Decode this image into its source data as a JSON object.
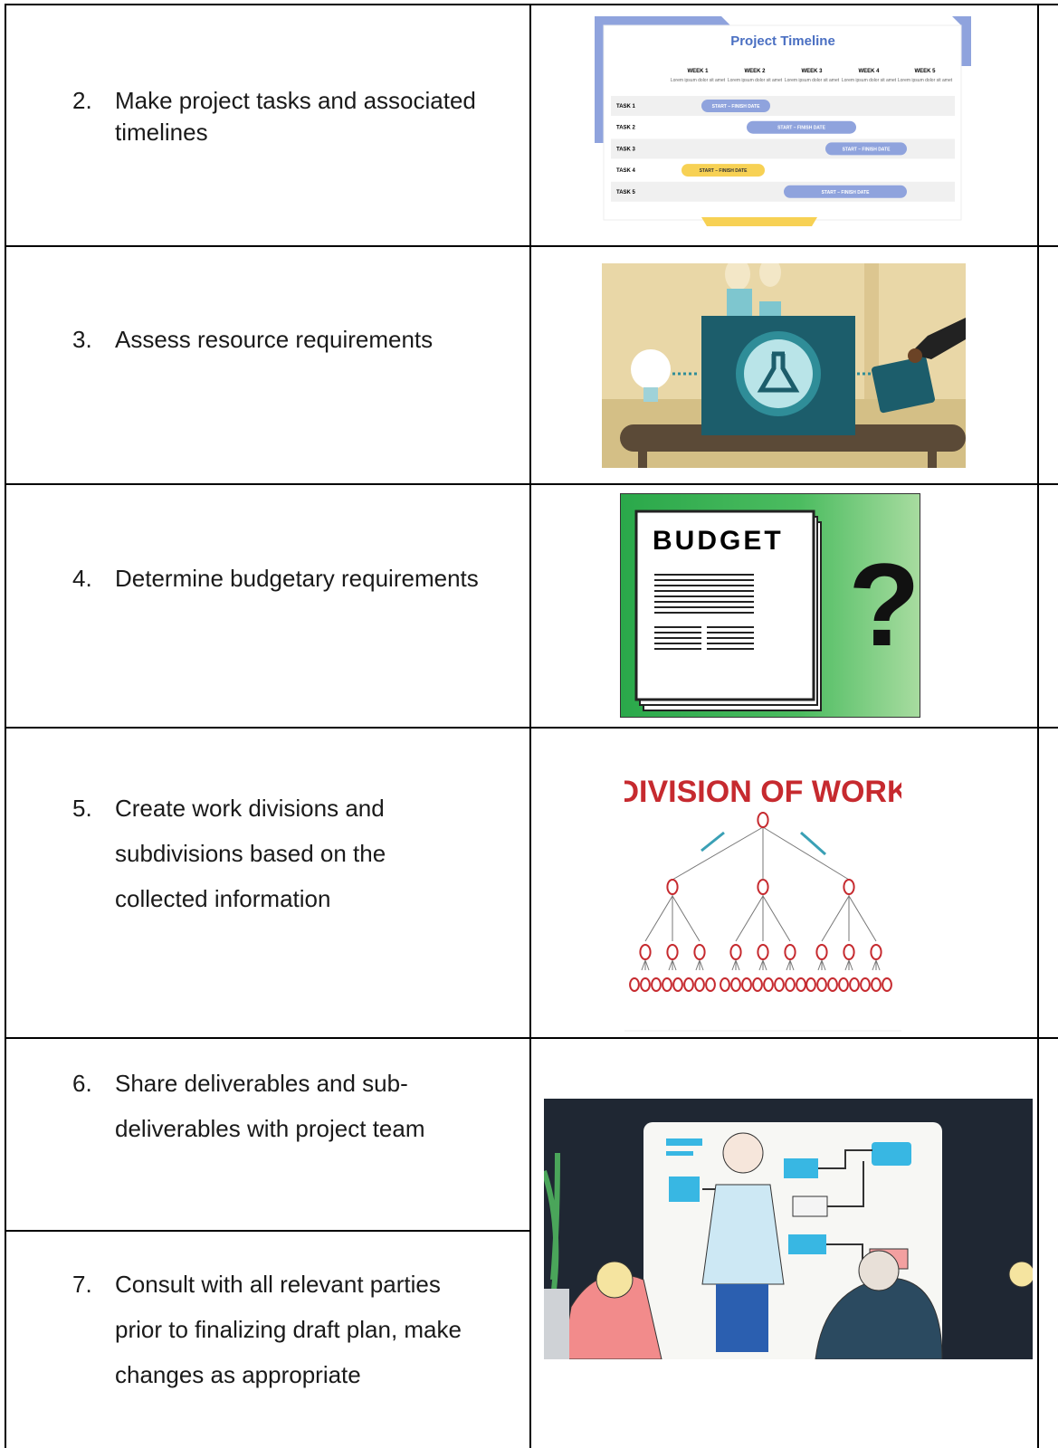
{
  "rows": [
    {
      "number": "2.",
      "lines": [
        "Make project tasks and associated",
        "timelines"
      ],
      "image": {
        "title": "Project Timeline",
        "weeks": [
          "WEEK 1",
          "WEEK 2",
          "WEEK 3",
          "WEEK 4",
          "WEEK 5"
        ],
        "week_note": "Lorem ipsum dolor sit amet",
        "tasks": [
          "TASK 1",
          "TASK 2",
          "TASK 3",
          "TASK 4",
          "TASK 5"
        ],
        "bar_label": "START – FINISH DATE"
      }
    },
    {
      "number": "3.",
      "lines": [
        "Assess resource requirements"
      ]
    },
    {
      "number": "4.",
      "lines": [
        "Determine budgetary requirements"
      ],
      "image": {
        "heading": "BUDGET",
        "mark": "?"
      }
    },
    {
      "number": "5.",
      "lines": [
        "Create work divisions and",
        "subdivisions based on the",
        "collected information"
      ],
      "image": {
        "heading": "DIVISION OF WORK"
      }
    },
    {
      "number": "6.",
      "lines": [
        "Share deliverables and sub-",
        "deliverables with project team"
      ]
    },
    {
      "number": "7.",
      "lines": [
        "Consult with all relevant parties",
        "prior to finalizing draft plan, make",
        "changes as appropriate"
      ]
    }
  ]
}
